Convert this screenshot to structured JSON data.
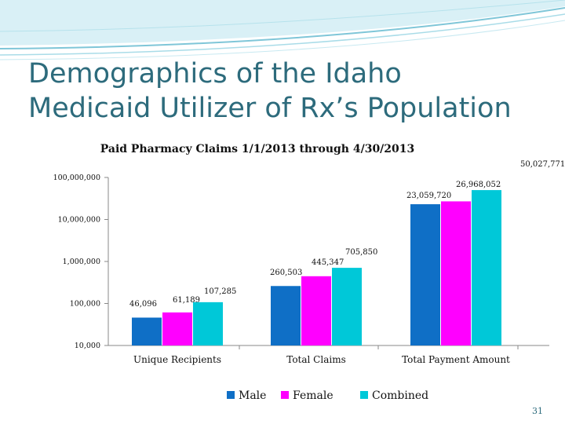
{
  "slide": {
    "title_line1": "Demographics of the Idaho",
    "title_line2": "Medicaid Utilizer of Rx’s Population",
    "page_number": "31"
  },
  "colors": {
    "title": "#2d6b7c",
    "header_wave": "#7fc6d8",
    "male": "#0f6fc6",
    "female": "#ff00ff",
    "combined": "#00c8d8"
  },
  "chart_data": {
    "type": "bar",
    "title": "Paid Pharmacy Claims 1/1/2013 through 4/30/2013",
    "y_scale": "log",
    "ylim": [
      10000,
      100000000
    ],
    "y_ticks": [
      10000,
      100000,
      1000000,
      10000000,
      100000000
    ],
    "y_tick_labels": [
      "10,000",
      "100,000",
      "1,000,000",
      "10,000,000",
      "100,000,000"
    ],
    "categories": [
      "Unique Recipients",
      "Total Claims",
      "Total Payment Amount"
    ],
    "series": [
      {
        "name": "Male",
        "values": [
          46096,
          260503,
          23059720
        ],
        "labels": [
          "46,096",
          "260,503",
          "23,059,720"
        ]
      },
      {
        "name": "Female",
        "values": [
          61189,
          445347,
          26968052
        ],
        "labels": [
          "61,189",
          "445,347",
          "26,968,052"
        ]
      },
      {
        "name": "Combined",
        "values": [
          107285,
          705850,
          50027771
        ],
        "labels": [
          "107,285",
          "705,850",
          "50,027,771"
        ]
      }
    ],
    "legend_position": "bottom",
    "grid": false
  }
}
